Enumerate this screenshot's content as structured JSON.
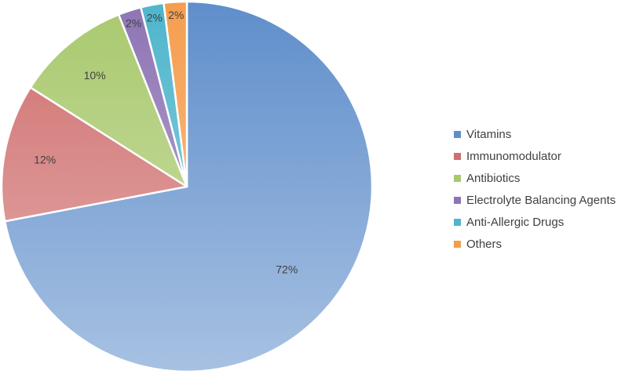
{
  "chart_data": {
    "type": "pie",
    "title": "",
    "categories": [
      "Vitamins",
      "Immunomodulator",
      "Antibiotics",
      "Electrolyte Balancing Agents",
      "Anti-Allergic Drugs",
      "Others"
    ],
    "values": [
      72,
      12,
      10,
      2,
      2,
      2
    ],
    "labels": [
      "72%",
      "12%",
      "10%",
      "2%",
      "2%",
      "2%"
    ],
    "colors": [
      "#5f8ecb",
      "#cf6f6e",
      "#a9c96e",
      "#8e74b4",
      "#4fb5cc",
      "#f59d4e"
    ],
    "legend_position": "right",
    "start_angle": "12 o'clock",
    "direction": "clockwise"
  }
}
